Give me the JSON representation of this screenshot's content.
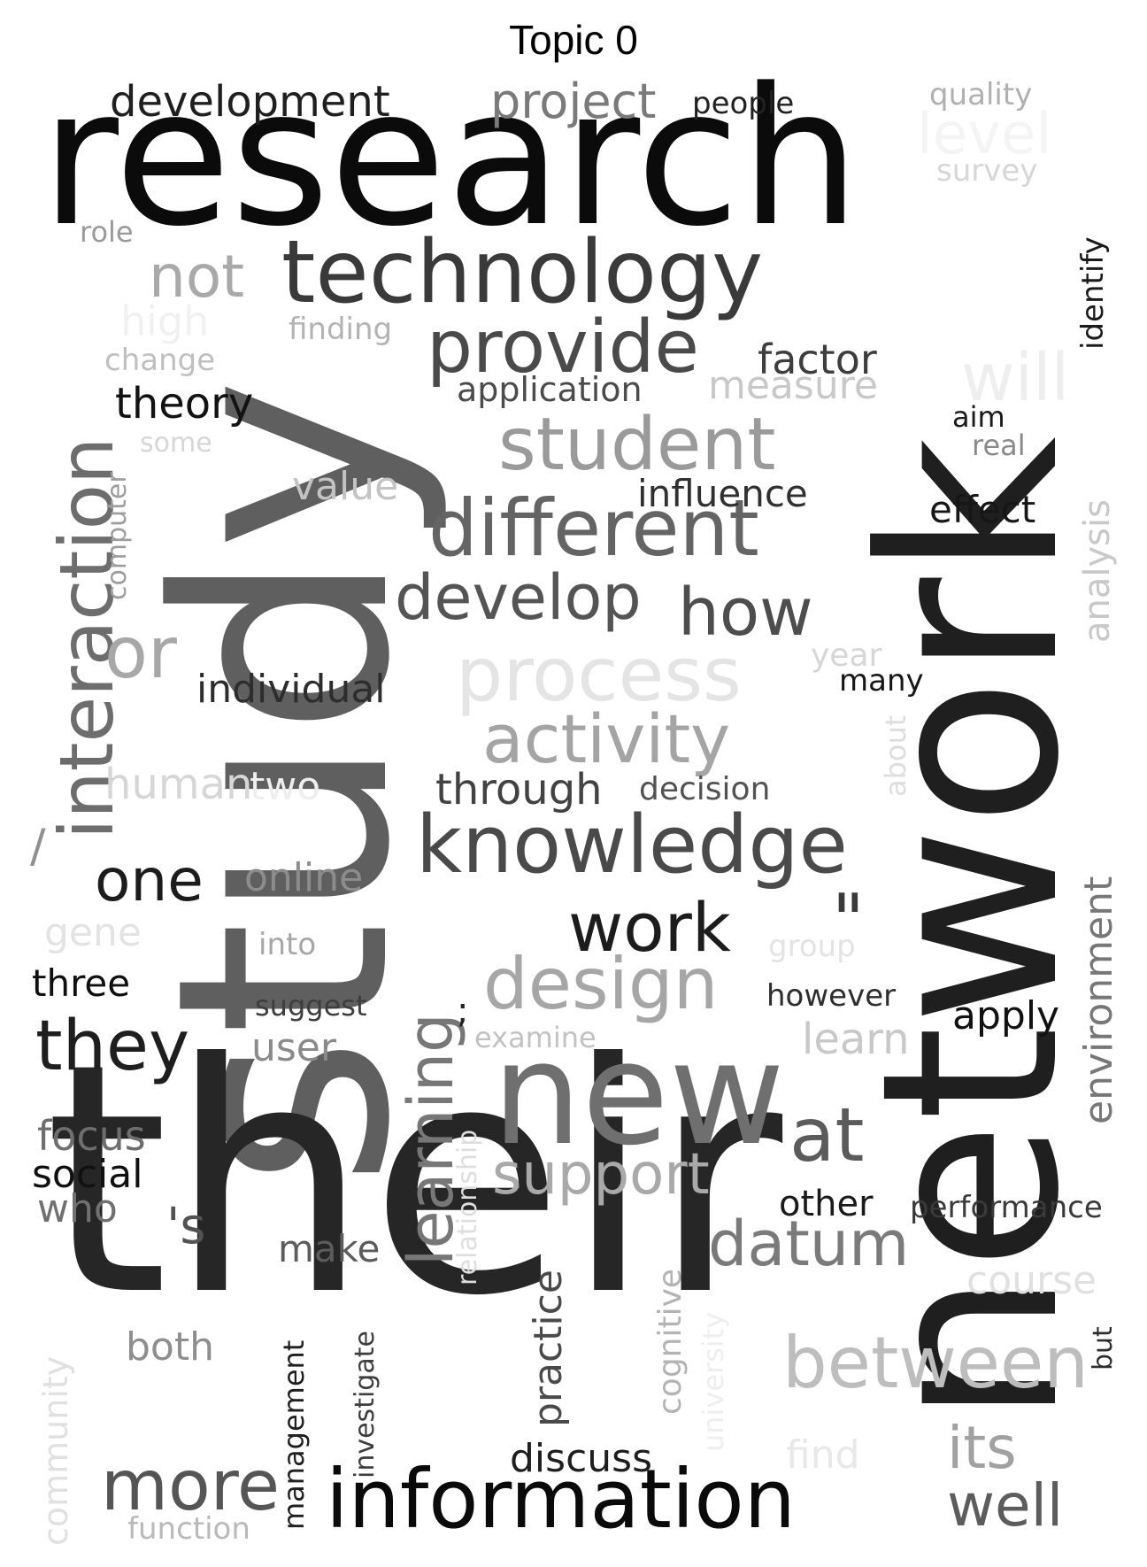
{
  "title": "Topic 0",
  "words": {
    "research": {
      "text": "research",
      "color": "#0b0b0b"
    },
    "study": {
      "text": "study",
      "color": "#5f5f5f"
    },
    "their": {
      "text": "their",
      "color": "#262626"
    },
    "network": {
      "text": "network",
      "color": "#1f1f1f"
    },
    "new": {
      "text": "new",
      "color": "#6f6f6f"
    },
    "technology": {
      "text": "technology",
      "color": "#3a3a3a"
    },
    "information": {
      "text": "information",
      "color": "#0a0a0a"
    },
    "knowledge": {
      "text": "knowledge",
      "color": "#4a4a4a"
    },
    "different": {
      "text": "different",
      "color": "#646464"
    },
    "provide": {
      "text": "provide",
      "color": "#4a4a4a"
    },
    "student": {
      "text": "student",
      "color": "#9a9a9a"
    },
    "interaction": {
      "text": "interaction",
      "color": "#6d6d6d"
    },
    "process": {
      "text": "process",
      "color": "#e4e4e4"
    },
    "activity": {
      "text": "activity",
      "color": "#a4a4a4"
    },
    "design": {
      "text": "design",
      "color": "#a6a6a6"
    },
    "develop": {
      "text": "develop",
      "color": "#545454"
    },
    "how": {
      "text": "how",
      "color": "#4d4d4d"
    },
    "learning": {
      "text": "learning",
      "color": "#777777"
    },
    "between": {
      "text": "between",
      "color": "#bdbdbd"
    },
    "more": {
      "text": "more",
      "color": "#555555"
    },
    "they": {
      "text": "they",
      "color": "#1e1e1e"
    },
    "work": {
      "text": "work",
      "color": "#1c1c1c"
    },
    "datum": {
      "text": "datum",
      "color": "#7a7a7a"
    },
    "at": {
      "text": "at",
      "color": "#5b5b5b"
    },
    "support": {
      "text": "support",
      "color": "#a9a9a9"
    },
    "well": {
      "text": "well",
      "color": "#5c5c5c"
    },
    "its": {
      "text": "its",
      "color": "#a1a1a1"
    },
    "one": {
      "text": "one",
      "color": "#1c1c1c"
    },
    "or": {
      "text": "or",
      "color": "#a7a7a7"
    },
    "not": {
      "text": "not",
      "color": "#a9a9a9"
    },
    "development": {
      "text": "development",
      "color": "#1f1f1f"
    },
    "project": {
      "text": "project",
      "color": "#7a7a7a"
    },
    "people": {
      "text": "people",
      "color": "#222222"
    },
    "quality": {
      "text": "quality",
      "color": "#b0b0b0"
    },
    "level": {
      "text": "level",
      "color": "#f4f4f4"
    },
    "survey": {
      "text": "survey",
      "color": "#d6d6d6"
    },
    "identify": {
      "text": "identify",
      "color": "#1a1a1a"
    },
    "role": {
      "text": "role",
      "color": "#9a9a9a"
    },
    "high": {
      "text": "high",
      "color": "#f0f0f0"
    },
    "finding": {
      "text": "finding",
      "color": "#b3b3b3"
    },
    "change": {
      "text": "change",
      "color": "#bfbfbf"
    },
    "factor": {
      "text": "factor",
      "color": "#3d3d3d"
    },
    "measure": {
      "text": "measure",
      "color": "#c8c8c8"
    },
    "application": {
      "text": "application",
      "color": "#4b4b4b"
    },
    "will": {
      "text": "will",
      "color": "#eeeeee"
    },
    "theory": {
      "text": "theory",
      "color": "#121212"
    },
    "aim": {
      "text": "aim",
      "color": "#1a1a1a"
    },
    "real": {
      "text": "real",
      "color": "#8a8a8a"
    },
    "some": {
      "text": "some",
      "color": "#d6d6d6"
    },
    "analysis": {
      "text": "analysis",
      "color": "#c8c8c8"
    },
    "computer": {
      "text": "computer",
      "color": "#9d9d9d"
    },
    "value": {
      "text": "value",
      "color": "#c3c3c3"
    },
    "influence": {
      "text": "influence",
      "color": "#303030"
    },
    "effect": {
      "text": "effect",
      "color": "#161616"
    },
    "year": {
      "text": "year",
      "color": "#d6d6d6"
    },
    "many": {
      "text": "many",
      "color": "#161616"
    },
    "individual": {
      "text": "individual",
      "color": "#2d2d2d"
    },
    "about": {
      "text": "about",
      "color": "#dddddd"
    },
    "human": {
      "text": "human",
      "color": "#d6d6d6"
    },
    "two": {
      "text": "two",
      "color": "#eeeeee"
    },
    "through": {
      "text": "through",
      "color": "#424242"
    },
    "decision": {
      "text": "decision",
      "color": "#525252"
    },
    "slash": {
      "text": "/",
      "color": "#909090"
    },
    "online": {
      "text": "online",
      "color": "#8c8c8c"
    },
    "environment": {
      "text": "environment",
      "color": "#777777"
    },
    "quote": {
      "text": "\"",
      "color": "#3a3a3a"
    },
    "gene": {
      "text": "gene",
      "color": "#e3e3e3"
    },
    "into": {
      "text": "into",
      "color": "#a7a7a7"
    },
    "group": {
      "text": "group",
      "color": "#e3e3e3"
    },
    "three": {
      "text": "three",
      "color": "#0f0f0f"
    },
    "suggest": {
      "text": "suggest",
      "color": "#3d3d3d"
    },
    "semicolon": {
      "text": ";",
      "color": "#222222"
    },
    "however": {
      "text": "however",
      "color": "#2d2d2d"
    },
    "apply": {
      "text": "apply",
      "color": "#111111"
    },
    "user": {
      "text": "user",
      "color": "#8a8a8a"
    },
    "examine": {
      "text": "examine",
      "color": "#c2c2c2"
    },
    "learn": {
      "text": "learn",
      "color": "#c8c8c8"
    },
    "relationship": {
      "text": "relationship",
      "color": "#dedede"
    },
    "focus": {
      "text": "focus",
      "color": "#6e6e6e"
    },
    "social": {
      "text": "social",
      "color": "#101010"
    },
    "who": {
      "text": "who",
      "color": "#707070"
    },
    "other": {
      "text": "other",
      "color": "#1a1a1a"
    },
    "performance": {
      "text": "performance",
      "color": "#3a3a3a"
    },
    "apostrophe_s": {
      "text": "'s",
      "color": "#525252"
    },
    "make": {
      "text": "make",
      "color": "#5c5c5c"
    },
    "practice": {
      "text": "practice",
      "color": "#4a4a4a"
    },
    "cognitive": {
      "text": "cognitive",
      "color": "#b3b3b3"
    },
    "course": {
      "text": "course",
      "color": "#e0e0e0"
    },
    "investigate": {
      "text": "investigate",
      "color": "#3d3d3d"
    },
    "university": {
      "text": "university",
      "color": "#eeeeee"
    },
    "both": {
      "text": "both",
      "color": "#8e8e8e"
    },
    "community": {
      "text": "community",
      "color": "#e0e0e0"
    },
    "management": {
      "text": "management",
      "color": "#1f1f1f"
    },
    "but": {
      "text": "but",
      "color": "#2d2d2d"
    },
    "discuss": {
      "text": "discuss",
      "color": "#1e1e1e"
    },
    "find": {
      "text": "find",
      "color": "#e8e8e8"
    },
    "function": {
      "text": "function",
      "color": "#b9b9b9"
    }
  }
}
